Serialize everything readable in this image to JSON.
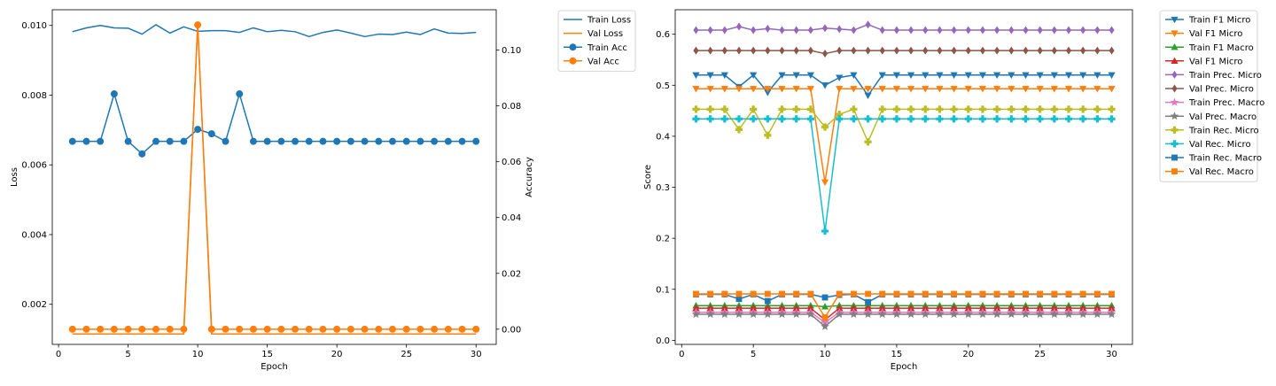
{
  "colors": {
    "tab_blue": "#1f77b4",
    "tab_orange": "#ff7f0e",
    "tab_green": "#2ca02c",
    "tab_red": "#d62728",
    "tab_purple": "#9467bd",
    "tab_brown": "#8c564b",
    "tab_pink": "#e377c2",
    "tab_gray": "#7f7f7f",
    "tab_olive": "#bcbd22",
    "tab_cyan": "#17becf"
  },
  "chart_data": [
    {
      "type": "line",
      "xlabel": "Epoch",
      "ylabel": "Loss",
      "y2label": "Accuracy",
      "xlim": [
        -0.45,
        31.45
      ],
      "ylim": [
        0.00085,
        0.01045
      ],
      "y2lim": [
        -0.00545,
        0.11445
      ],
      "x_ticks": [
        0,
        5,
        10,
        15,
        20,
        25,
        30
      ],
      "y_ticks": [
        0.002,
        0.004,
        0.006,
        0.008,
        0.01
      ],
      "y_tick_labels": [
        "0.002",
        "0.004",
        "0.006",
        "0.008",
        "0.010"
      ],
      "y2_ticks": [
        0.0,
        0.02,
        0.04,
        0.06,
        0.08,
        0.1
      ],
      "y2_tick_labels": [
        "0.00",
        "0.02",
        "0.04",
        "0.06",
        "0.08",
        "0.10"
      ],
      "legend_placement": "outside-right-top",
      "x": [
        1,
        2,
        3,
        4,
        5,
        6,
        7,
        8,
        9,
        10,
        11,
        12,
        13,
        14,
        15,
        16,
        17,
        18,
        19,
        20,
        21,
        22,
        23,
        24,
        25,
        26,
        27,
        28,
        29,
        30
      ],
      "series": [
        {
          "name": "Train Loss",
          "axis": "left",
          "color": "#1f77b4",
          "marker": "none",
          "values": [
            0.00982,
            0.00993,
            0.01,
            0.00993,
            0.00992,
            0.00975,
            0.01002,
            0.00978,
            0.00996,
            0.00983,
            0.00985,
            0.00985,
            0.0098,
            0.00993,
            0.00982,
            0.00986,
            0.00982,
            0.00968,
            0.0098,
            0.00987,
            0.00978,
            0.00968,
            0.00975,
            0.00974,
            0.00981,
            0.00974,
            0.0099,
            0.00978,
            0.00977,
            0.0098
          ]
        },
        {
          "name": "Val Loss",
          "axis": "left",
          "color": "#ff7f0e",
          "marker": "none",
          "values": [
            0.00115,
            0.00115,
            0.00115,
            0.00115,
            0.00115,
            0.00115,
            0.00115,
            0.00115,
            0.00115,
            0.01003,
            0.00115,
            0.00115,
            0.00115,
            0.00115,
            0.00115,
            0.00115,
            0.00115,
            0.00115,
            0.00115,
            0.00115,
            0.00115,
            0.00115,
            0.00115,
            0.00115,
            0.00115,
            0.00115,
            0.00115,
            0.00115,
            0.00115,
            0.00115
          ]
        },
        {
          "name": "Train Acc",
          "axis": "right",
          "color": "#1f77b4",
          "marker": "circle",
          "values": [
            0.0673,
            0.0673,
            0.0673,
            0.0843,
            0.0673,
            0.0628,
            0.0673,
            0.0673,
            0.0673,
            0.0716,
            0.07,
            0.0673,
            0.0843,
            0.0673,
            0.0673,
            0.0673,
            0.0673,
            0.0673,
            0.0673,
            0.0673,
            0.0673,
            0.0673,
            0.0673,
            0.0673,
            0.0673,
            0.0673,
            0.0673,
            0.0673,
            0.0673,
            0.0673
          ]
        },
        {
          "name": "Val Acc",
          "axis": "right",
          "color": "#ff7f0e",
          "marker": "circle",
          "values": [
            0.0,
            0.0,
            0.0,
            0.0,
            0.0,
            0.0,
            0.0,
            0.0,
            0.0,
            0.109,
            0.0,
            0.0,
            0.0,
            0.0,
            0.0,
            0.0,
            0.0,
            0.0,
            0.0,
            0.0,
            0.0,
            0.0,
            0.0,
            0.0,
            0.0,
            0.0,
            0.0,
            0.0,
            0.0,
            0.0
          ]
        }
      ]
    },
    {
      "type": "line",
      "xlabel": "Epoch",
      "ylabel": "Score",
      "xlim": [
        -0.45,
        31.45
      ],
      "ylim": [
        -0.008,
        0.648
      ],
      "x_ticks": [
        0,
        5,
        10,
        15,
        20,
        25,
        30
      ],
      "y_ticks": [
        0.0,
        0.1,
        0.2,
        0.3,
        0.4,
        0.5,
        0.6
      ],
      "y_tick_labels": [
        "0.0",
        "0.1",
        "0.2",
        "0.3",
        "0.4",
        "0.5",
        "0.6"
      ],
      "legend_placement": "outside-right-top",
      "x": [
        1,
        2,
        3,
        4,
        5,
        6,
        7,
        8,
        9,
        10,
        11,
        12,
        13,
        14,
        15,
        16,
        17,
        18,
        19,
        20,
        21,
        22,
        23,
        24,
        25,
        26,
        27,
        28,
        29,
        30
      ],
      "series": [
        {
          "name": "Train F1 Micro",
          "color": "#1f77b4",
          "marker": "triangle_down",
          "values": [
            0.52,
            0.52,
            0.52,
            0.497,
            0.52,
            0.486,
            0.52,
            0.52,
            0.52,
            0.5,
            0.515,
            0.52,
            0.48,
            0.52,
            0.52,
            0.52,
            0.52,
            0.52,
            0.52,
            0.52,
            0.52,
            0.52,
            0.52,
            0.52,
            0.52,
            0.52,
            0.52,
            0.52,
            0.52,
            0.52
          ]
        },
        {
          "name": "Val F1 Micro",
          "color": "#ff7f0e",
          "marker": "triangle_down",
          "values": [
            0.493,
            0.493,
            0.493,
            0.493,
            0.493,
            0.493,
            0.493,
            0.493,
            0.493,
            0.31,
            0.493,
            0.493,
            0.493,
            0.493,
            0.493,
            0.493,
            0.493,
            0.493,
            0.493,
            0.493,
            0.493,
            0.493,
            0.493,
            0.493,
            0.493,
            0.493,
            0.493,
            0.493,
            0.493,
            0.493
          ]
        },
        {
          "name": "Train F1 Macro",
          "color": "#2ca02c",
          "marker": "triangle_up",
          "values": [
            0.068,
            0.068,
            0.068,
            0.068,
            0.068,
            0.068,
            0.068,
            0.068,
            0.068,
            0.066,
            0.068,
            0.068,
            0.068,
            0.068,
            0.068,
            0.068,
            0.068,
            0.068,
            0.068,
            0.068,
            0.068,
            0.068,
            0.068,
            0.068,
            0.068,
            0.068,
            0.068,
            0.068,
            0.068,
            0.068
          ]
        },
        {
          "name": "Val F1 Micro",
          "color": "#d62728",
          "marker": "triangle_up",
          "values": [
            0.063,
            0.063,
            0.063,
            0.063,
            0.063,
            0.063,
            0.063,
            0.063,
            0.063,
            0.04,
            0.063,
            0.063,
            0.063,
            0.063,
            0.063,
            0.063,
            0.063,
            0.063,
            0.063,
            0.063,
            0.063,
            0.063,
            0.063,
            0.063,
            0.063,
            0.063,
            0.063,
            0.063,
            0.063,
            0.063
          ]
        },
        {
          "name": "Train Prec. Micro",
          "color": "#9467bd",
          "marker": "diamond",
          "values": [
            0.608,
            0.608,
            0.608,
            0.615,
            0.608,
            0.611,
            0.608,
            0.608,
            0.608,
            0.612,
            0.61,
            0.608,
            0.619,
            0.608,
            0.608,
            0.608,
            0.608,
            0.608,
            0.608,
            0.608,
            0.608,
            0.608,
            0.608,
            0.608,
            0.608,
            0.608,
            0.608,
            0.608,
            0.608,
            0.608
          ]
        },
        {
          "name": "Val Prec. Micro",
          "color": "#8c564b",
          "marker": "diamond",
          "values": [
            0.568,
            0.568,
            0.568,
            0.568,
            0.568,
            0.568,
            0.568,
            0.568,
            0.568,
            0.562,
            0.568,
            0.568,
            0.568,
            0.568,
            0.568,
            0.568,
            0.568,
            0.568,
            0.568,
            0.568,
            0.568,
            0.568,
            0.568,
            0.568,
            0.568,
            0.568,
            0.568,
            0.568,
            0.568,
            0.568
          ]
        },
        {
          "name": "Train Prec. Macro",
          "color": "#e377c2",
          "marker": "star",
          "values": [
            0.055,
            0.055,
            0.055,
            0.055,
            0.055,
            0.055,
            0.055,
            0.055,
            0.055,
            0.035,
            0.055,
            0.055,
            0.055,
            0.055,
            0.055,
            0.055,
            0.055,
            0.055,
            0.055,
            0.055,
            0.055,
            0.055,
            0.055,
            0.055,
            0.055,
            0.055,
            0.055,
            0.055,
            0.055,
            0.055
          ]
        },
        {
          "name": "Val Prec. Macro",
          "color": "#7f7f7f",
          "marker": "star",
          "values": [
            0.051,
            0.051,
            0.051,
            0.051,
            0.051,
            0.051,
            0.051,
            0.051,
            0.051,
            0.027,
            0.051,
            0.051,
            0.051,
            0.051,
            0.051,
            0.051,
            0.051,
            0.051,
            0.051,
            0.051,
            0.051,
            0.051,
            0.051,
            0.051,
            0.051,
            0.051,
            0.051,
            0.051,
            0.051,
            0.051
          ]
        },
        {
          "name": "Train Rec. Micro",
          "color": "#bcbd22",
          "marker": "plus",
          "values": [
            0.453,
            0.453,
            0.453,
            0.413,
            0.453,
            0.402,
            0.453,
            0.453,
            0.453,
            0.418,
            0.443,
            0.453,
            0.389,
            0.453,
            0.453,
            0.453,
            0.453,
            0.453,
            0.453,
            0.453,
            0.453,
            0.453,
            0.453,
            0.453,
            0.453,
            0.453,
            0.453,
            0.453,
            0.453,
            0.453
          ]
        },
        {
          "name": "Val Rec. Micro",
          "color": "#17becf",
          "marker": "plus",
          "values": [
            0.434,
            0.434,
            0.434,
            0.434,
            0.434,
            0.434,
            0.434,
            0.434,
            0.434,
            0.214,
            0.434,
            0.434,
            0.434,
            0.434,
            0.434,
            0.434,
            0.434,
            0.434,
            0.434,
            0.434,
            0.434,
            0.434,
            0.434,
            0.434,
            0.434,
            0.434,
            0.434,
            0.434,
            0.434,
            0.434
          ]
        },
        {
          "name": "Train Rec. Macro",
          "color": "#1f77b4",
          "marker": "square",
          "values": [
            0.09,
            0.09,
            0.09,
            0.081,
            0.09,
            0.077,
            0.09,
            0.09,
            0.09,
            0.084,
            0.089,
            0.09,
            0.075,
            0.09,
            0.09,
            0.09,
            0.09,
            0.09,
            0.09,
            0.09,
            0.09,
            0.09,
            0.09,
            0.09,
            0.09,
            0.09,
            0.09,
            0.09,
            0.09,
            0.09
          ]
        },
        {
          "name": "Val Rec. Macro",
          "color": "#ff7f0e",
          "marker": "square",
          "values": [
            0.091,
            0.091,
            0.091,
            0.091,
            0.091,
            0.091,
            0.091,
            0.091,
            0.091,
            0.045,
            0.091,
            0.091,
            0.091,
            0.091,
            0.091,
            0.091,
            0.091,
            0.091,
            0.091,
            0.091,
            0.091,
            0.091,
            0.091,
            0.091,
            0.091,
            0.091,
            0.091,
            0.091,
            0.091,
            0.091
          ]
        }
      ]
    }
  ]
}
